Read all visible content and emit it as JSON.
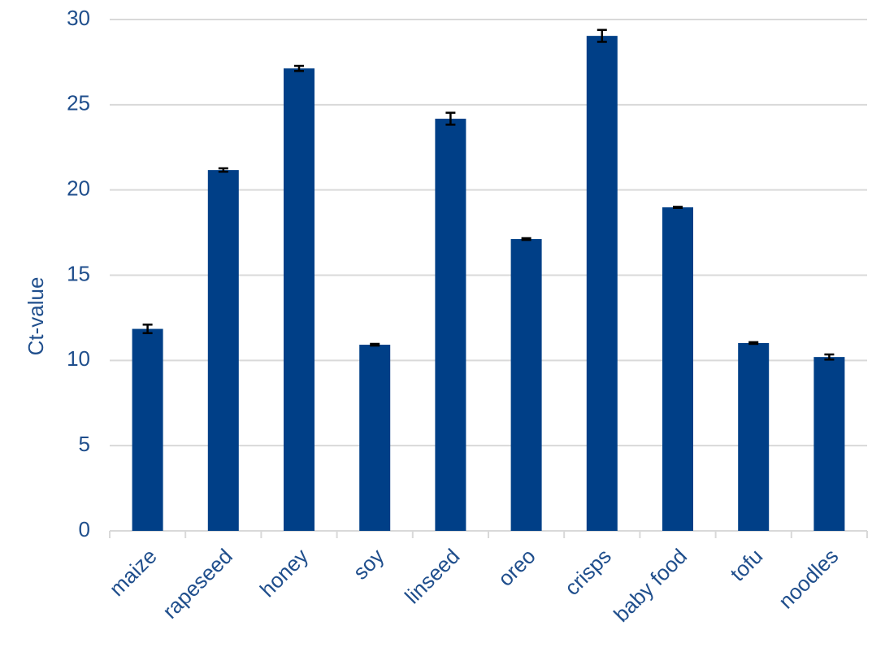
{
  "chart_data": {
    "type": "bar",
    "y_label": "Ct-value",
    "categories": [
      "maize",
      "rapeseed",
      "honey",
      "soy",
      "linseed",
      "oreo",
      "crisps",
      "baby food",
      "tofu",
      "noodles"
    ],
    "values": [
      11.85,
      21.17,
      27.13,
      10.92,
      24.18,
      17.12,
      29.04,
      18.98,
      11.02,
      10.2
    ],
    "errors": [
      0.25,
      0.1,
      0.15,
      0.05,
      0.35,
      0.05,
      0.35,
      0.03,
      0.05,
      0.15
    ],
    "color": "#003f87",
    "ylim": [
      0,
      30
    ],
    "yticks": [
      0,
      5,
      10,
      15,
      20,
      25,
      30
    ],
    "grid": true
  }
}
